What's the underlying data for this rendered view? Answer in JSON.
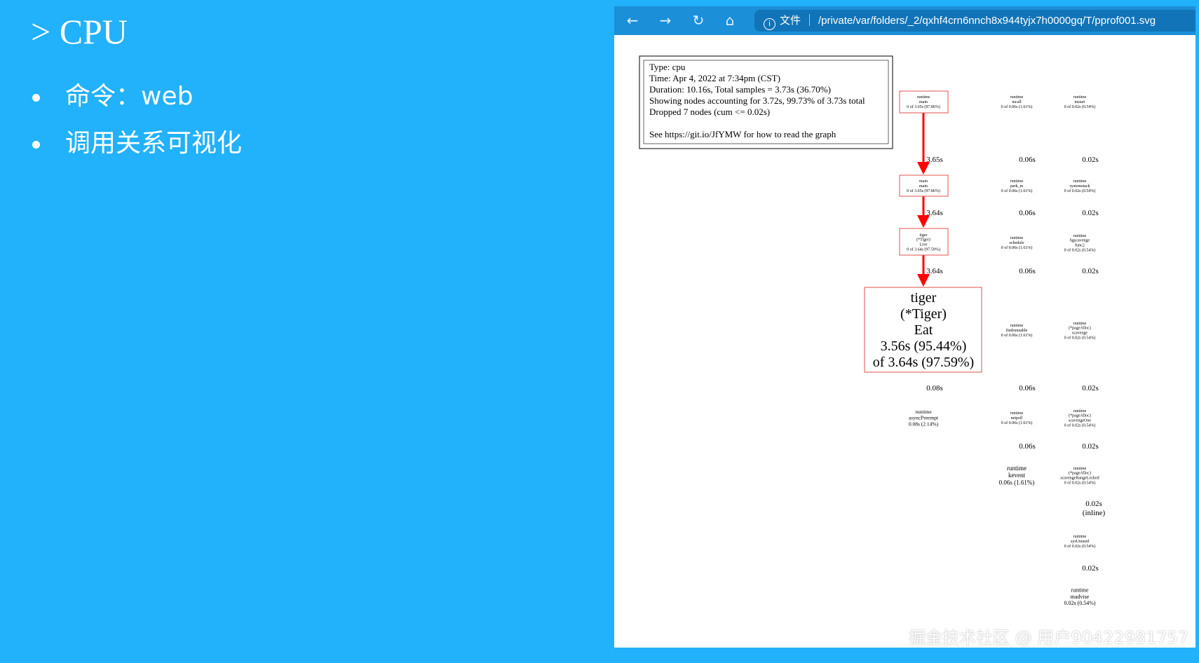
{
  "slide": {
    "title": "> CPU",
    "bullets": [
      "命令：web",
      "调用关系可视化"
    ]
  },
  "browser": {
    "nav_icons": [
      "back-arrow-icon",
      "forward-arrow-icon",
      "reload-icon",
      "home-icon"
    ],
    "info_icon": "info-icon",
    "scheme_label": "文件",
    "url": "/private/var/folders/_2/qxhf4crn6nnch8x944tyjx7h0000gq/T/pprof001.svg",
    "toolbar_color": "#1b8fd8"
  },
  "graph": {
    "legend": [
      "Type: cpu",
      "Time: Apr 4, 2022 at 7:34pm (CST)",
      "Duration: 10.16s, Total samples = 3.73s (36.70%)",
      "Showing nodes accounting for 3.72s, 99.73% of 3.73s total",
      "Dropped 7 nodes (cum <= 0.02s)",
      "See https://git.io/JfYMW for how to read the graph"
    ],
    "hot_color": "#ff0000",
    "nodes": [
      {
        "lines": [
          "runtime",
          "main",
          "0 of 3.65s (97.86%)"
        ]
      },
      {
        "lines": [
          "main",
          "main",
          "0 of 3.65s (97.86%)"
        ]
      },
      {
        "lines": [
          "tiger",
          "(*Tiger)",
          "Live",
          "0 of 3.64s (97.59%)"
        ]
      },
      {
        "lines": [
          "tiger",
          "(*Tiger)",
          "Eat",
          "3.56s (95.44%)",
          "of 3.64s (97.59%)"
        ]
      },
      {
        "lines": [
          "runtime",
          "asyncPreempt",
          "0.08s (2.14%)"
        ]
      },
      {
        "lines": [
          "runtime",
          "mcall",
          "0 of 0.06s (1.61%)"
        ]
      },
      {
        "lines": [
          "runtime",
          "park_m",
          "0 of 0.06s (1.61%)"
        ]
      },
      {
        "lines": [
          "runtime",
          "schedule",
          "0 of 0.06s (1.61%)"
        ]
      },
      {
        "lines": [
          "runtime",
          "findrunnable",
          "0 of 0.06s (1.61%)"
        ]
      },
      {
        "lines": [
          "runtime",
          "netpoll",
          "0 of 0.06s (1.61%)"
        ]
      },
      {
        "lines": [
          "runtime",
          "kevent",
          "0.06s (1.61%)"
        ]
      },
      {
        "lines": [
          "runtime",
          "mstart",
          "0 of 0.02s (0.54%)"
        ]
      },
      {
        "lines": [
          "runtime",
          "systemstack",
          "0 of 0.02s (0.54%)"
        ]
      },
      {
        "lines": [
          "runtime",
          "bgscavenge",
          "func2",
          "0 of 0.02s (0.54%)"
        ]
      },
      {
        "lines": [
          "runtime",
          "(*pageAlloc)",
          "scavenge",
          "0 of 0.02s (0.54%)"
        ]
      },
      {
        "lines": [
          "runtime",
          "(*pageAlloc)",
          "scavengeOne",
          "0 of 0.02s (0.54%)"
        ]
      },
      {
        "lines": [
          "runtime",
          "(*pageAlloc)",
          "scavengeRangeLocked",
          "0 of 0.02s (0.54%)"
        ]
      },
      {
        "lines": [
          "runtime",
          "sysUnused",
          "0 of 0.02s (0.54%)"
        ]
      },
      {
        "lines": [
          "runtime",
          "madvise",
          "0.02s (0.54%)"
        ]
      }
    ],
    "edges": [
      {
        "label": "3.65s"
      },
      {
        "label": "3.64s"
      },
      {
        "label": "3.64s"
      },
      {
        "label": "0.08s"
      },
      {
        "label": "0.06s"
      },
      {
        "label": "0.06s"
      },
      {
        "label": "0.06s"
      },
      {
        "label": "0.06s"
      },
      {
        "label": "0.06s"
      },
      {
        "label": "0.02s"
      },
      {
        "label": "0.02s"
      },
      {
        "label": "0.02s"
      },
      {
        "label": "0.02s"
      },
      {
        "label": "0.02s"
      },
      {
        "label": "0.02s (inline)"
      },
      {
        "label": "0.02s"
      }
    ]
  },
  "watermark": "掘金技术社区 @ 用户9042298175​7"
}
